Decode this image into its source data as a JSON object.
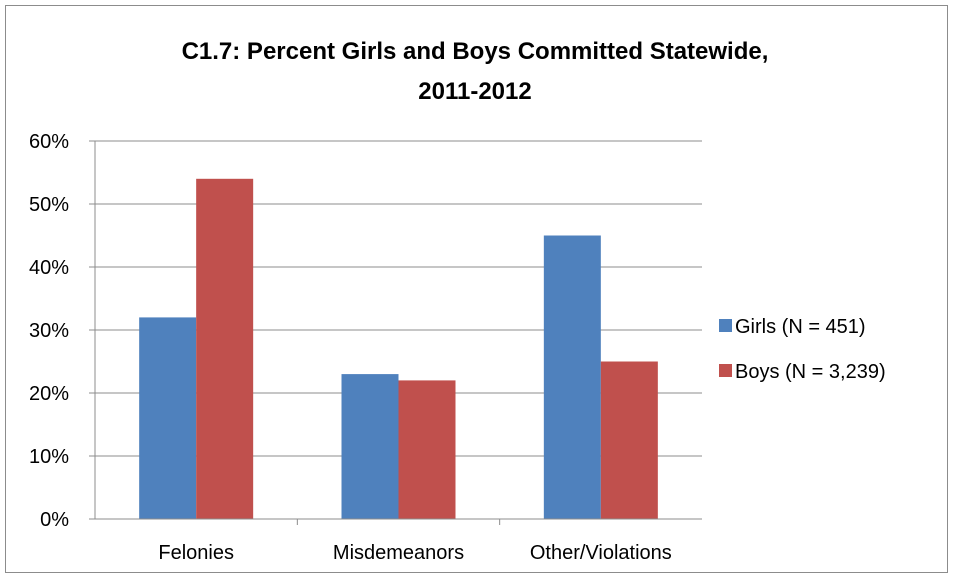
{
  "chart_data": {
    "type": "bar",
    "title_lines": [
      "C1.7: Percent Girls and Boys Committed Statewide,",
      "2011-2012"
    ],
    "categories": [
      "Felonies",
      "Misdemeanors",
      "Other/Violations"
    ],
    "series": [
      {
        "name": "Girls (N = 451)",
        "values": [
          32,
          23,
          45
        ],
        "color": "#4f81bd"
      },
      {
        "name": "Boys (N = 3,239)",
        "values": [
          54,
          22,
          25
        ],
        "color": "#c0504d"
      }
    ],
    "ylim": [
      0,
      60
    ],
    "y_ticks": [
      0,
      10,
      20,
      30,
      40,
      50,
      60
    ],
    "y_tick_labels": [
      "0%",
      "10%",
      "20%",
      "30%",
      "40%",
      "50%",
      "60%"
    ],
    "grid": true,
    "legend_position": "right"
  }
}
